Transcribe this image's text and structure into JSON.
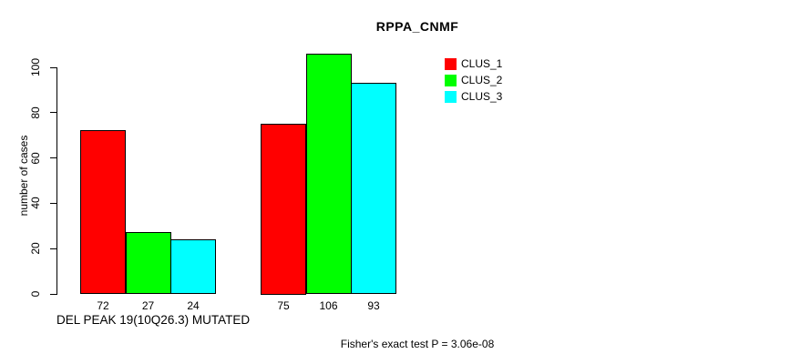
{
  "chart_data": {
    "type": "bar",
    "title": "RPPA_CNMF",
    "ylabel": "number of cases",
    "xlabel": "DEL PEAK 19(10Q26.3) MUTATED",
    "annotation": "Fisher's exact test P = 3.06e-08",
    "yticks": [
      0,
      20,
      40,
      60,
      80,
      100
    ],
    "ylim": [
      0,
      107
    ],
    "grid": false,
    "bar_value_labels_shown": true,
    "group_count": 2,
    "series": [
      {
        "name": "CLUS_1",
        "color": "#ff0000",
        "values": [
          72,
          75
        ]
      },
      {
        "name": "CLUS_2",
        "color": "#00ff00",
        "values": [
          27,
          106
        ]
      },
      {
        "name": "CLUS_3",
        "color": "#00ffff",
        "values": [
          24,
          93
        ]
      }
    ],
    "legend": {
      "position": "top-right",
      "entries": [
        "CLUS_1",
        "CLUS_2",
        "CLUS_3"
      ]
    }
  }
}
